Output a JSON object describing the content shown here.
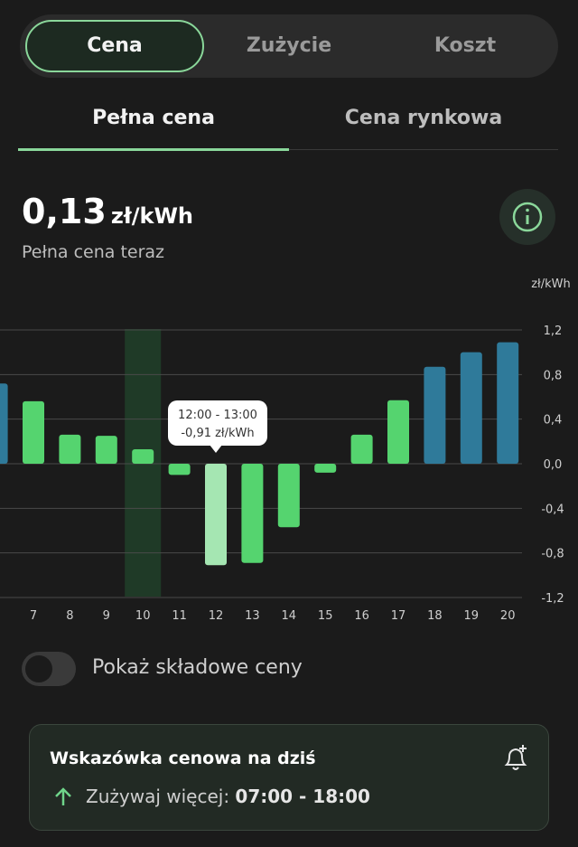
{
  "tabs": [
    "Cena",
    "Zużycie",
    "Koszt"
  ],
  "subtabs": [
    "Pełna cena",
    "Cena rynkowa"
  ],
  "current": {
    "value": "0,13",
    "unit": "zł/kWh",
    "caption": "Pełna cena teraz"
  },
  "chart_data": {
    "type": "bar",
    "y_label": "zł/kWh",
    "categories": [
      null,
      "7",
      "8",
      "9",
      "10",
      "11",
      "12",
      "13",
      "14",
      "15",
      "16",
      "17",
      "18",
      "19",
      "20"
    ],
    "values": [
      0.72,
      0.56,
      0.26,
      0.25,
      0.13,
      -0.1,
      -0.91,
      -0.89,
      -0.57,
      -0.08,
      0.26,
      0.57,
      0.87,
      1.0,
      1.09
    ],
    "colors": [
      "#2f7a9a",
      "#55d46f",
      "#55d46f",
      "#55d46f",
      "#55d46f",
      "#55d46f",
      "#a5e6b2",
      "#55d46f",
      "#55d46f",
      "#55d46f",
      "#55d46f",
      "#55d46f",
      "#2f7a9a",
      "#2f7a9a",
      "#2f7a9a"
    ],
    "highlight_category": "10",
    "ylim": [
      -1.2,
      1.2
    ],
    "yticks": [
      {
        "value": 1.2,
        "label": "1,2"
      },
      {
        "value": 0.8,
        "label": "0,8"
      },
      {
        "value": 0.4,
        "label": "0,4"
      },
      {
        "value": 0,
        "label": "0,0"
      },
      {
        "value": -0.4,
        "label": "-0,4"
      },
      {
        "value": -0.8,
        "label": "-0,8"
      },
      {
        "value": -1.2,
        "label": "-1,2"
      }
    ],
    "grid": true,
    "tooltip": {
      "title": "12:00 - 13:00",
      "label": "-0,91 zł/kWh",
      "category": "12"
    }
  },
  "toggle": {
    "label": "Pokaż składowe ceny"
  },
  "hint": {
    "title": "Wskazówka cenowa na dziś",
    "text": "Zużywaj więcej:",
    "time": "07:00 - 18:00"
  }
}
